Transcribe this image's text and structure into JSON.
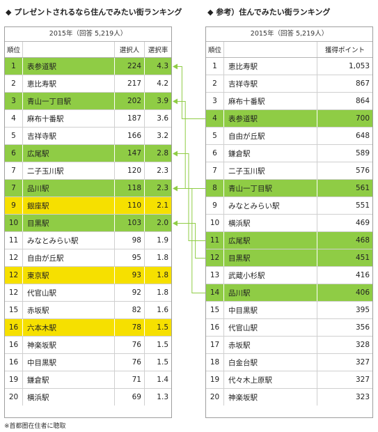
{
  "left_panel": {
    "title": "◆ プレゼントされるなら住んでみたい街ランキング",
    "year_label": "2015年（回答 5,219人）",
    "headers": {
      "rank": "順位",
      "name": "",
      "people": "選択人",
      "rate": "選択率"
    },
    "rows": [
      {
        "rank": "1",
        "name": "表参道駅",
        "people": "224",
        "rate": "4.3",
        "highlight": "green"
      },
      {
        "rank": "2",
        "name": "恵比寿駅",
        "people": "217",
        "rate": "4.2",
        "highlight": "none"
      },
      {
        "rank": "3",
        "name": "青山一丁目駅",
        "people": "202",
        "rate": "3.9",
        "highlight": "green"
      },
      {
        "rank": "4",
        "name": "麻布十番駅",
        "people": "187",
        "rate": "3.6",
        "highlight": "none"
      },
      {
        "rank": "5",
        "name": "吉祥寺駅",
        "people": "166",
        "rate": "3.2",
        "highlight": "none"
      },
      {
        "rank": "6",
        "name": "広尾駅",
        "people": "147",
        "rate": "2.8",
        "highlight": "green"
      },
      {
        "rank": "7",
        "name": "二子玉川駅",
        "people": "120",
        "rate": "2.3",
        "highlight": "none"
      },
      {
        "rank": "7",
        "name": "品川駅",
        "people": "118",
        "rate": "2.3",
        "highlight": "green"
      },
      {
        "rank": "9",
        "name": "銀座駅",
        "people": "110",
        "rate": "2.1",
        "highlight": "yellow"
      },
      {
        "rank": "10",
        "name": "目黒駅",
        "people": "103",
        "rate": "2.0",
        "highlight": "green"
      },
      {
        "rank": "11",
        "name": "みなとみらい駅",
        "people": "98",
        "rate": "1.9",
        "highlight": "none"
      },
      {
        "rank": "12",
        "name": "自由が丘駅",
        "people": "95",
        "rate": "1.8",
        "highlight": "none"
      },
      {
        "rank": "12",
        "name": "東京駅",
        "people": "93",
        "rate": "1.8",
        "highlight": "yellow"
      },
      {
        "rank": "12",
        "name": "代官山駅",
        "people": "92",
        "rate": "1.8",
        "highlight": "none"
      },
      {
        "rank": "15",
        "name": "赤坂駅",
        "people": "82",
        "rate": "1.6",
        "highlight": "none"
      },
      {
        "rank": "16",
        "name": "六本木駅",
        "people": "78",
        "rate": "1.5",
        "highlight": "yellow"
      },
      {
        "rank": "16",
        "name": "神楽坂駅",
        "people": "76",
        "rate": "1.5",
        "highlight": "none"
      },
      {
        "rank": "16",
        "name": "中目黒駅",
        "people": "76",
        "rate": "1.5",
        "highlight": "none"
      },
      {
        "rank": "19",
        "name": "鎌倉駅",
        "people": "71",
        "rate": "1.4",
        "highlight": "none"
      },
      {
        "rank": "20",
        "name": "横浜駅",
        "people": "69",
        "rate": "1.3",
        "highlight": "none"
      }
    ]
  },
  "right_panel": {
    "title": "◆ 参考）住んでみたい街ランキング",
    "year_label": "2015年（回答 5,219人）",
    "headers": {
      "rank": "順位",
      "name": "",
      "points": "獲得ポイント"
    },
    "rows": [
      {
        "rank": "1",
        "name": "恵比寿駅",
        "points": "1,053",
        "highlight": "none"
      },
      {
        "rank": "2",
        "name": "吉祥寺駅",
        "points": "867",
        "highlight": "none"
      },
      {
        "rank": "3",
        "name": "麻布十番駅",
        "points": "864",
        "highlight": "none"
      },
      {
        "rank": "4",
        "name": "表参道駅",
        "points": "700",
        "highlight": "green"
      },
      {
        "rank": "5",
        "name": "自由が丘駅",
        "points": "648",
        "highlight": "none"
      },
      {
        "rank": "6",
        "name": "鎌倉駅",
        "points": "589",
        "highlight": "none"
      },
      {
        "rank": "7",
        "name": "二子玉川駅",
        "points": "576",
        "highlight": "none"
      },
      {
        "rank": "8",
        "name": "青山一丁目駅",
        "points": "561",
        "highlight": "green"
      },
      {
        "rank": "9",
        "name": "みなとみらい駅",
        "points": "551",
        "highlight": "none"
      },
      {
        "rank": "10",
        "name": "横浜駅",
        "points": "469",
        "highlight": "none"
      },
      {
        "rank": "11",
        "name": "広尾駅",
        "points": "468",
        "highlight": "green"
      },
      {
        "rank": "12",
        "name": "目黒駅",
        "points": "451",
        "highlight": "green"
      },
      {
        "rank": "13",
        "name": "武蔵小杉駅",
        "points": "416",
        "highlight": "none"
      },
      {
        "rank": "14",
        "name": "品川駅",
        "points": "406",
        "highlight": "green"
      },
      {
        "rank": "15",
        "name": "中目黒駅",
        "points": "395",
        "highlight": "none"
      },
      {
        "rank": "16",
        "name": "代官山駅",
        "points": "356",
        "highlight": "none"
      },
      {
        "rank": "17",
        "name": "赤坂駅",
        "points": "328",
        "highlight": "none"
      },
      {
        "rank": "18",
        "name": "白金台駅",
        "points": "327",
        "highlight": "none"
      },
      {
        "rank": "19",
        "name": "代々木上原駅",
        "points": "327",
        "highlight": "none"
      },
      {
        "rank": "20",
        "name": "神楽坂駅",
        "points": "323",
        "highlight": "none"
      }
    ]
  },
  "footnote": "※首都圏在住者に聴取",
  "colors": {
    "green": "#8fcc45",
    "yellow": "#f6e000",
    "connector": "#8fcc45"
  }
}
